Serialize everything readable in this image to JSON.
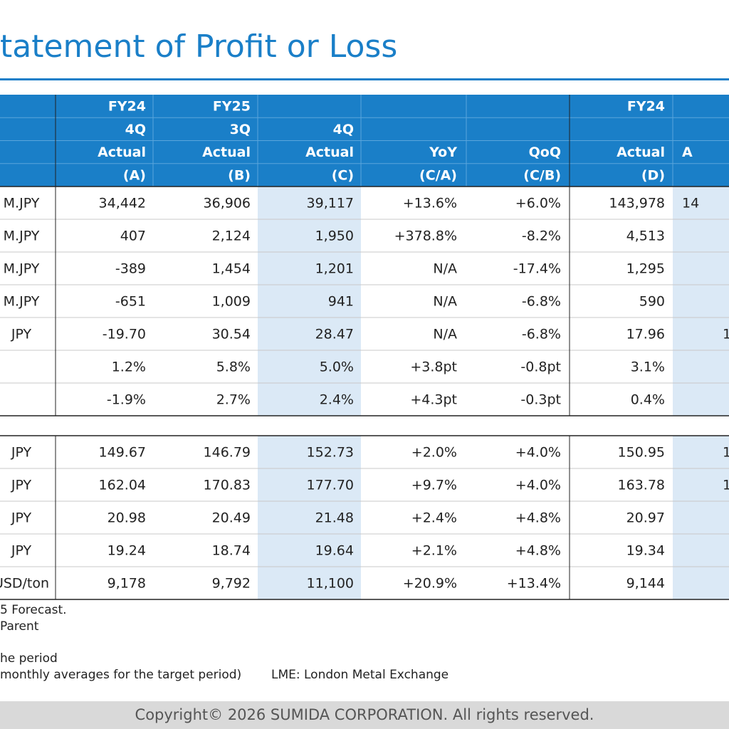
{
  "title": "tatement of Profit or Loss",
  "table": {
    "header_rows": [
      [
        null,
        "FY24",
        "FY25",
        null,
        null,
        null,
        "FY24",
        null
      ],
      [
        null,
        "4Q",
        "3Q",
        "4Q",
        null,
        null,
        null,
        null
      ],
      [
        null,
        "Actual",
        "Actual",
        "Actual",
        "YoY",
        "QoQ",
        "Actual",
        "A"
      ],
      [
        null,
        "(A)",
        "(B)",
        "(C)",
        "(C/A)",
        "(C/B)",
        "(D)",
        null
      ]
    ],
    "rows": [
      [
        "M.JPY",
        "34,442",
        "36,906",
        "39,117",
        "+13.6%",
        "+6.0%",
        "143,978",
        "14"
      ],
      [
        "M.JPY",
        "407",
        "2,124",
        "1,950",
        "+378.8%",
        "-8.2%",
        "4,513",
        null
      ],
      [
        "M.JPY",
        "-389",
        "1,454",
        "1,201",
        "N/A",
        "-17.4%",
        "1,295",
        null
      ],
      [
        "M.JPY",
        "-651",
        "1,009",
        "941",
        "N/A",
        "-6.8%",
        "590",
        null
      ],
      [
        "JPY",
        "-19.70",
        "30.54",
        "28.47",
        "N/A",
        "-6.8%",
        "17.96",
        "1"
      ],
      [
        null,
        "1.2%",
        "5.8%",
        "5.0%",
        "+3.8pt",
        "-0.8pt",
        "3.1%",
        null
      ],
      [
        null,
        "-1.9%",
        "2.7%",
        "2.4%",
        "+4.3pt",
        "-0.3pt",
        "0.4%",
        null
      ]
    ],
    "rows2": [
      [
        "JPY",
        "149.67",
        "146.79",
        "152.73",
        "+2.0%",
        "+4.0%",
        "150.95",
        "1"
      ],
      [
        "JPY",
        "162.04",
        "170.83",
        "177.70",
        "+9.7%",
        "+4.0%",
        "163.78",
        "1"
      ],
      [
        "JPY",
        "20.98",
        "20.49",
        "21.48",
        "+2.4%",
        "+4.8%",
        "20.97",
        null
      ],
      [
        "JPY",
        "19.24",
        "18.74",
        "19.64",
        "+2.1%",
        "+4.8%",
        "19.34",
        null
      ],
      [
        "USD/ton",
        "9,178",
        "9,792",
        "11,100",
        "+20.9%",
        "+13.4%",
        "9,144",
        null
      ]
    ]
  },
  "footnotes": [
    "5 Forecast.",
    "Parent",
    "he period",
    "monthly averages for the target period)",
    "LME: London Metal Exchange"
  ],
  "copyright": "Copyright© 2026 SUMIDA CORPORATION. All rights reserved."
}
